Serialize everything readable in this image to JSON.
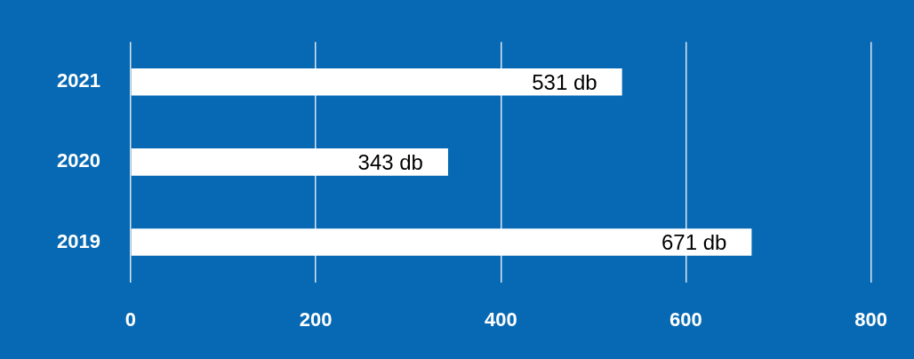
{
  "chart_data": {
    "type": "bar",
    "orientation": "horizontal",
    "categories": [
      "2021",
      "2020",
      "2019"
    ],
    "values": [
      531,
      343,
      671
    ],
    "value_labels": [
      "531 db",
      "343 db",
      "671 db"
    ],
    "color": "#ffffff",
    "xlim": [
      0,
      800
    ],
    "xticks": [
      0,
      200,
      400,
      600,
      800
    ],
    "grid": "x",
    "legend": false
  }
}
